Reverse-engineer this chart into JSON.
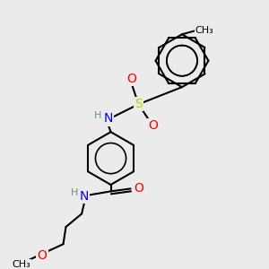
{
  "bg_color": "#ebebeb",
  "bond_color": "#000000",
  "bond_width": 1.5,
  "atom_colors": {
    "C": "#000000",
    "H": "#6c8c8c",
    "N": "#0000ff",
    "O": "#ff0000",
    "S": "#cccc00"
  },
  "figsize": [
    3.0,
    3.0
  ],
  "dpi": 100,
  "aromatic_lw": 1.0
}
